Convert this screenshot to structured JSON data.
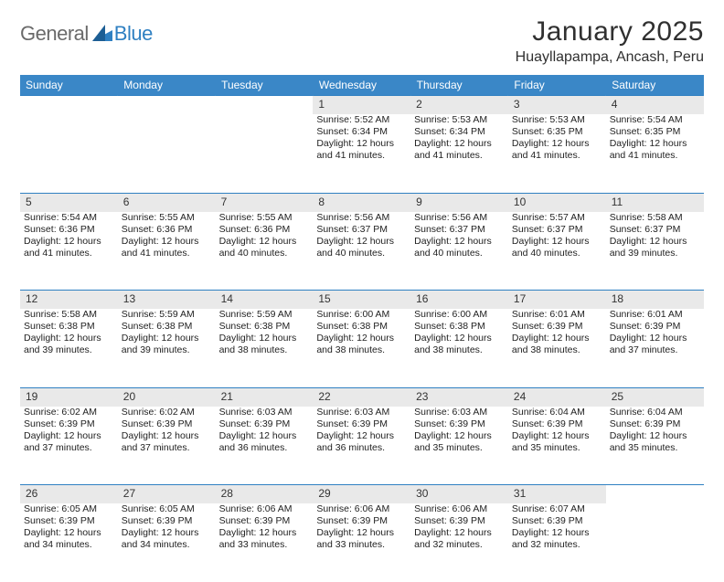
{
  "logo": {
    "general": "General",
    "blue": "Blue"
  },
  "title": "January 2025",
  "location": "Huayllapampa, Ancash, Peru",
  "colors": {
    "header_bg": "#3a87c7",
    "header_text": "#ffffff",
    "daynum_bg": "#e9e9e9",
    "border": "#2f80c2",
    "body_text": "#222222",
    "logo_gray": "#6a6a6a",
    "logo_blue": "#2f80c2",
    "page_bg": "#ffffff"
  },
  "weekdays": [
    "Sunday",
    "Monday",
    "Tuesday",
    "Wednesday",
    "Thursday",
    "Friday",
    "Saturday"
  ],
  "weeks": [
    {
      "nums": [
        "",
        "",
        "",
        "1",
        "2",
        "3",
        "4"
      ],
      "cells": [
        null,
        null,
        null,
        {
          "sunrise": "Sunrise: 5:52 AM",
          "sunset": "Sunset: 6:34 PM",
          "d1": "Daylight: 12 hours",
          "d2": "and 41 minutes."
        },
        {
          "sunrise": "Sunrise: 5:53 AM",
          "sunset": "Sunset: 6:34 PM",
          "d1": "Daylight: 12 hours",
          "d2": "and 41 minutes."
        },
        {
          "sunrise": "Sunrise: 5:53 AM",
          "sunset": "Sunset: 6:35 PM",
          "d1": "Daylight: 12 hours",
          "d2": "and 41 minutes."
        },
        {
          "sunrise": "Sunrise: 5:54 AM",
          "sunset": "Sunset: 6:35 PM",
          "d1": "Daylight: 12 hours",
          "d2": "and 41 minutes."
        }
      ]
    },
    {
      "nums": [
        "5",
        "6",
        "7",
        "8",
        "9",
        "10",
        "11"
      ],
      "cells": [
        {
          "sunrise": "Sunrise: 5:54 AM",
          "sunset": "Sunset: 6:36 PM",
          "d1": "Daylight: 12 hours",
          "d2": "and 41 minutes."
        },
        {
          "sunrise": "Sunrise: 5:55 AM",
          "sunset": "Sunset: 6:36 PM",
          "d1": "Daylight: 12 hours",
          "d2": "and 41 minutes."
        },
        {
          "sunrise": "Sunrise: 5:55 AM",
          "sunset": "Sunset: 6:36 PM",
          "d1": "Daylight: 12 hours",
          "d2": "and 40 minutes."
        },
        {
          "sunrise": "Sunrise: 5:56 AM",
          "sunset": "Sunset: 6:37 PM",
          "d1": "Daylight: 12 hours",
          "d2": "and 40 minutes."
        },
        {
          "sunrise": "Sunrise: 5:56 AM",
          "sunset": "Sunset: 6:37 PM",
          "d1": "Daylight: 12 hours",
          "d2": "and 40 minutes."
        },
        {
          "sunrise": "Sunrise: 5:57 AM",
          "sunset": "Sunset: 6:37 PM",
          "d1": "Daylight: 12 hours",
          "d2": "and 40 minutes."
        },
        {
          "sunrise": "Sunrise: 5:58 AM",
          "sunset": "Sunset: 6:37 PM",
          "d1": "Daylight: 12 hours",
          "d2": "and 39 minutes."
        }
      ]
    },
    {
      "nums": [
        "12",
        "13",
        "14",
        "15",
        "16",
        "17",
        "18"
      ],
      "cells": [
        {
          "sunrise": "Sunrise: 5:58 AM",
          "sunset": "Sunset: 6:38 PM",
          "d1": "Daylight: 12 hours",
          "d2": "and 39 minutes."
        },
        {
          "sunrise": "Sunrise: 5:59 AM",
          "sunset": "Sunset: 6:38 PM",
          "d1": "Daylight: 12 hours",
          "d2": "and 39 minutes."
        },
        {
          "sunrise": "Sunrise: 5:59 AM",
          "sunset": "Sunset: 6:38 PM",
          "d1": "Daylight: 12 hours",
          "d2": "and 38 minutes."
        },
        {
          "sunrise": "Sunrise: 6:00 AM",
          "sunset": "Sunset: 6:38 PM",
          "d1": "Daylight: 12 hours",
          "d2": "and 38 minutes."
        },
        {
          "sunrise": "Sunrise: 6:00 AM",
          "sunset": "Sunset: 6:38 PM",
          "d1": "Daylight: 12 hours",
          "d2": "and 38 minutes."
        },
        {
          "sunrise": "Sunrise: 6:01 AM",
          "sunset": "Sunset: 6:39 PM",
          "d1": "Daylight: 12 hours",
          "d2": "and 38 minutes."
        },
        {
          "sunrise": "Sunrise: 6:01 AM",
          "sunset": "Sunset: 6:39 PM",
          "d1": "Daylight: 12 hours",
          "d2": "and 37 minutes."
        }
      ]
    },
    {
      "nums": [
        "19",
        "20",
        "21",
        "22",
        "23",
        "24",
        "25"
      ],
      "cells": [
        {
          "sunrise": "Sunrise: 6:02 AM",
          "sunset": "Sunset: 6:39 PM",
          "d1": "Daylight: 12 hours",
          "d2": "and 37 minutes."
        },
        {
          "sunrise": "Sunrise: 6:02 AM",
          "sunset": "Sunset: 6:39 PM",
          "d1": "Daylight: 12 hours",
          "d2": "and 37 minutes."
        },
        {
          "sunrise": "Sunrise: 6:03 AM",
          "sunset": "Sunset: 6:39 PM",
          "d1": "Daylight: 12 hours",
          "d2": "and 36 minutes."
        },
        {
          "sunrise": "Sunrise: 6:03 AM",
          "sunset": "Sunset: 6:39 PM",
          "d1": "Daylight: 12 hours",
          "d2": "and 36 minutes."
        },
        {
          "sunrise": "Sunrise: 6:03 AM",
          "sunset": "Sunset: 6:39 PM",
          "d1": "Daylight: 12 hours",
          "d2": "and 35 minutes."
        },
        {
          "sunrise": "Sunrise: 6:04 AM",
          "sunset": "Sunset: 6:39 PM",
          "d1": "Daylight: 12 hours",
          "d2": "and 35 minutes."
        },
        {
          "sunrise": "Sunrise: 6:04 AM",
          "sunset": "Sunset: 6:39 PM",
          "d1": "Daylight: 12 hours",
          "d2": "and 35 minutes."
        }
      ]
    },
    {
      "nums": [
        "26",
        "27",
        "28",
        "29",
        "30",
        "31",
        ""
      ],
      "cells": [
        {
          "sunrise": "Sunrise: 6:05 AM",
          "sunset": "Sunset: 6:39 PM",
          "d1": "Daylight: 12 hours",
          "d2": "and 34 minutes."
        },
        {
          "sunrise": "Sunrise: 6:05 AM",
          "sunset": "Sunset: 6:39 PM",
          "d1": "Daylight: 12 hours",
          "d2": "and 34 minutes."
        },
        {
          "sunrise": "Sunrise: 6:06 AM",
          "sunset": "Sunset: 6:39 PM",
          "d1": "Daylight: 12 hours",
          "d2": "and 33 minutes."
        },
        {
          "sunrise": "Sunrise: 6:06 AM",
          "sunset": "Sunset: 6:39 PM",
          "d1": "Daylight: 12 hours",
          "d2": "and 33 minutes."
        },
        {
          "sunrise": "Sunrise: 6:06 AM",
          "sunset": "Sunset: 6:39 PM",
          "d1": "Daylight: 12 hours",
          "d2": "and 32 minutes."
        },
        {
          "sunrise": "Sunrise: 6:07 AM",
          "sunset": "Sunset: 6:39 PM",
          "d1": "Daylight: 12 hours",
          "d2": "and 32 minutes."
        },
        null
      ]
    }
  ]
}
